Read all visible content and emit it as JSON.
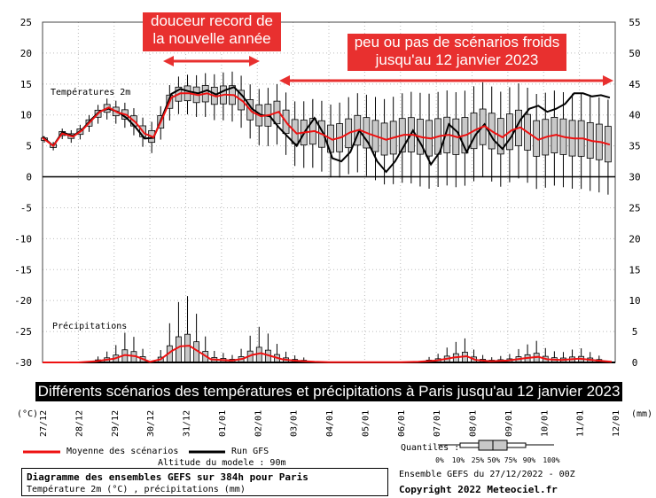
{
  "annotations": {
    "record": [
      "douceur record de",
      "la nouvelle année"
    ],
    "cold": [
      "peu ou pas de scénarios froids",
      "jusqu'au 12 janvier 2023"
    ]
  },
  "banner": "Différents scénarios des températures et précipitations à Paris jusqu'au 12 janvier 2023",
  "labels": {
    "temp_section": "Températures 2m",
    "precip_section": "Précipitations",
    "unit_left": "(°C)",
    "unit_right": "(mm)"
  },
  "legend": {
    "mean": "Moyenne des scénarios",
    "run": "Run GFS",
    "altitude": "Altitude du modele : 90m",
    "quantiles_label": "Quantiles :",
    "quantile_ticks": [
      "0%",
      "10%",
      "25%",
      "50%",
      "75%",
      "90%",
      "100%"
    ]
  },
  "footer": {
    "title": "Diagramme des ensembles GEFS sur 384h pour Paris",
    "subtitle": "Température 2m (°C) , précipitations (mm)",
    "ensemble": "Ensemble GEFS du 27/12/2022 - 00Z",
    "copyright": "Copyright 2022 Meteociel.fr"
  },
  "colors": {
    "mean": "#ee1111",
    "run": "#000000",
    "box": "#c8c8c8",
    "annotation": "#e8302f"
  },
  "chart_data": {
    "type": "line",
    "x_labels": [
      "27/12",
      "28/12",
      "29/12",
      "30/12",
      "31/12",
      "01/01",
      "02/01",
      "03/01",
      "04/01",
      "05/01",
      "06/01",
      "07/01",
      "08/01",
      "09/01",
      "10/01",
      "11/01",
      "12/01"
    ],
    "x_unit": "days",
    "xlim": [
      0,
      16
    ],
    "y_left": {
      "label": "(°C)",
      "min": -30,
      "max": 25,
      "ticks": [
        25,
        20,
        15,
        10,
        5,
        0,
        -5,
        -10,
        -15,
        -20,
        -25,
        -30
      ]
    },
    "y_right": {
      "label": "(mm)",
      "min": 0,
      "max": 55,
      "ticks": [
        55,
        50,
        45,
        40,
        35,
        30,
        25,
        20,
        15,
        10,
        5,
        0
      ]
    },
    "temperature": {
      "mean": [
        [
          0,
          6.3
        ],
        [
          0.3,
          5.0
        ],
        [
          0.55,
          7.0
        ],
        [
          0.85,
          6.5
        ],
        [
          1.1,
          7.5
        ],
        [
          1.35,
          9.0
        ],
        [
          1.6,
          10.5
        ],
        [
          1.85,
          11.2
        ],
        [
          2.1,
          10.4
        ],
        [
          2.35,
          10.0
        ],
        [
          2.6,
          8.8
        ],
        [
          2.85,
          7.0
        ],
        [
          3.1,
          6.4
        ],
        [
          3.35,
          9.5
        ],
        [
          3.6,
          12.8
        ],
        [
          3.85,
          13.5
        ],
        [
          4.1,
          13.5
        ],
        [
          4.35,
          13.2
        ],
        [
          4.6,
          13.5
        ],
        [
          4.85,
          13.0
        ],
        [
          5.1,
          13.3
        ],
        [
          5.35,
          13.2
        ],
        [
          5.6,
          12.2
        ],
        [
          5.85,
          10.5
        ],
        [
          6.1,
          9.8
        ],
        [
          6.35,
          10.0
        ],
        [
          6.6,
          10.5
        ],
        [
          6.85,
          8.5
        ],
        [
          7.1,
          7.0
        ],
        [
          7.35,
          7.2
        ],
        [
          7.6,
          7.4
        ],
        [
          7.85,
          6.8
        ],
        [
          8.1,
          6.0
        ],
        [
          8.35,
          6.4
        ],
        [
          8.6,
          7.2
        ],
        [
          8.85,
          7.6
        ],
        [
          9.1,
          7.0
        ],
        [
          9.35,
          6.5
        ],
        [
          9.6,
          6.0
        ],
        [
          9.85,
          6.4
        ],
        [
          10.1,
          6.8
        ],
        [
          10.35,
          6.8
        ],
        [
          10.6,
          6.4
        ],
        [
          10.85,
          6.2
        ],
        [
          11.1,
          6.6
        ],
        [
          11.35,
          6.8
        ],
        [
          11.6,
          6.4
        ],
        [
          11.85,
          6.8
        ],
        [
          12.1,
          7.6
        ],
        [
          12.35,
          8.2
        ],
        [
          12.6,
          7.2
        ],
        [
          12.85,
          6.4
        ],
        [
          13.1,
          7.5
        ],
        [
          13.35,
          8.0
        ],
        [
          13.6,
          7.0
        ],
        [
          13.85,
          6.0
        ],
        [
          14.1,
          6.5
        ],
        [
          14.35,
          6.8
        ],
        [
          14.6,
          6.4
        ],
        [
          14.85,
          6.2
        ],
        [
          15.1,
          6.2
        ],
        [
          15.35,
          5.8
        ],
        [
          15.6,
          5.6
        ],
        [
          15.85,
          5.2
        ]
      ],
      "run_gfs": [
        [
          0,
          6.5
        ],
        [
          0.3,
          5.0
        ],
        [
          0.55,
          7.2
        ],
        [
          0.85,
          6.6
        ],
        [
          1.1,
          7.6
        ],
        [
          1.35,
          9.2
        ],
        [
          1.6,
          10.6
        ],
        [
          1.85,
          11.0
        ],
        [
          2.1,
          10.5
        ],
        [
          2.35,
          9.5
        ],
        [
          2.6,
          8.0
        ],
        [
          2.85,
          6.2
        ],
        [
          3.1,
          6.3
        ],
        [
          3.35,
          9.8
        ],
        [
          3.6,
          13.4
        ],
        [
          3.85,
          14.2
        ],
        [
          4.1,
          13.8
        ],
        [
          4.35,
          13.5
        ],
        [
          4.6,
          14.0
        ],
        [
          4.85,
          13.3
        ],
        [
          5.1,
          14.0
        ],
        [
          5.35,
          14.5
        ],
        [
          5.6,
          13.0
        ],
        [
          5.85,
          11.0
        ],
        [
          6.1,
          10.0
        ],
        [
          6.35,
          9.8
        ],
        [
          6.6,
          8.0
        ],
        [
          6.85,
          6.5
        ],
        [
          7.1,
          5.0
        ],
        [
          7.35,
          7.5
        ],
        [
          7.6,
          9.5
        ],
        [
          7.85,
          7.0
        ],
        [
          8.1,
          3.0
        ],
        [
          8.35,
          2.5
        ],
        [
          8.6,
          4.0
        ],
        [
          8.85,
          7.5
        ],
        [
          9.1,
          5.5
        ],
        [
          9.35,
          2.5
        ],
        [
          9.6,
          0.8
        ],
        [
          9.85,
          2.5
        ],
        [
          10.1,
          5.0
        ],
        [
          10.35,
          7.5
        ],
        [
          10.6,
          5.0
        ],
        [
          10.85,
          2.0
        ],
        [
          11.1,
          4.0
        ],
        [
          11.35,
          8.5
        ],
        [
          11.6,
          7.2
        ],
        [
          11.85,
          4.0
        ],
        [
          12.1,
          6.8
        ],
        [
          12.35,
          8.5
        ],
        [
          12.6,
          6.0
        ],
        [
          12.85,
          4.5
        ],
        [
          13.1,
          6.5
        ],
        [
          13.35,
          9.2
        ],
        [
          13.6,
          11.0
        ],
        [
          13.85,
          11.5
        ],
        [
          14.1,
          10.5
        ],
        [
          14.35,
          11.0
        ],
        [
          14.6,
          11.8
        ],
        [
          14.85,
          13.5
        ],
        [
          15.1,
          13.5
        ],
        [
          15.35,
          13.0
        ],
        [
          15.6,
          13.2
        ],
        [
          15.85,
          12.8
        ]
      ]
    },
    "precipitation_mm": {
      "mean": [
        [
          0,
          0
        ],
        [
          1,
          0
        ],
        [
          1.5,
          0.2
        ],
        [
          2,
          0.6
        ],
        [
          2.3,
          1.2
        ],
        [
          2.6,
          1.0
        ],
        [
          3,
          0.1
        ],
        [
          3.3,
          0.5
        ],
        [
          3.6,
          1.8
        ],
        [
          3.85,
          2.6
        ],
        [
          4.1,
          2.7
        ],
        [
          4.4,
          1.6
        ],
        [
          4.7,
          0.5
        ],
        [
          5,
          0.4
        ],
        [
          5.3,
          0.3
        ],
        [
          5.6,
          0.6
        ],
        [
          5.85,
          1.2
        ],
        [
          6.1,
          1.5
        ],
        [
          6.4,
          1.0
        ],
        [
          6.7,
          0.5
        ],
        [
          7,
          0.3
        ],
        [
          7.3,
          0.2
        ],
        [
          7.6,
          0.1
        ],
        [
          8,
          0.05
        ],
        [
          8.5,
          0.05
        ],
        [
          9,
          0.05
        ],
        [
          9.5,
          0.05
        ],
        [
          10,
          0.05
        ],
        [
          10.5,
          0.1
        ],
        [
          11,
          0.3
        ],
        [
          11.5,
          0.8
        ],
        [
          11.85,
          1.0
        ],
        [
          12.1,
          0.4
        ],
        [
          12.5,
          0.2
        ],
        [
          13,
          0.3
        ],
        [
          13.5,
          0.7
        ],
        [
          13.85,
          0.9
        ],
        [
          14.1,
          0.5
        ],
        [
          14.5,
          0.4
        ],
        [
          15,
          0.6
        ],
        [
          15.5,
          0.3
        ],
        [
          15.9,
          0.1
        ]
      ],
      "run_gfs": [
        [
          0,
          0
        ],
        [
          16,
          0
        ]
      ]
    },
    "quantile_levels": [
      "0%",
      "10%",
      "25%",
      "50%",
      "75%",
      "90%",
      "100%"
    ]
  }
}
